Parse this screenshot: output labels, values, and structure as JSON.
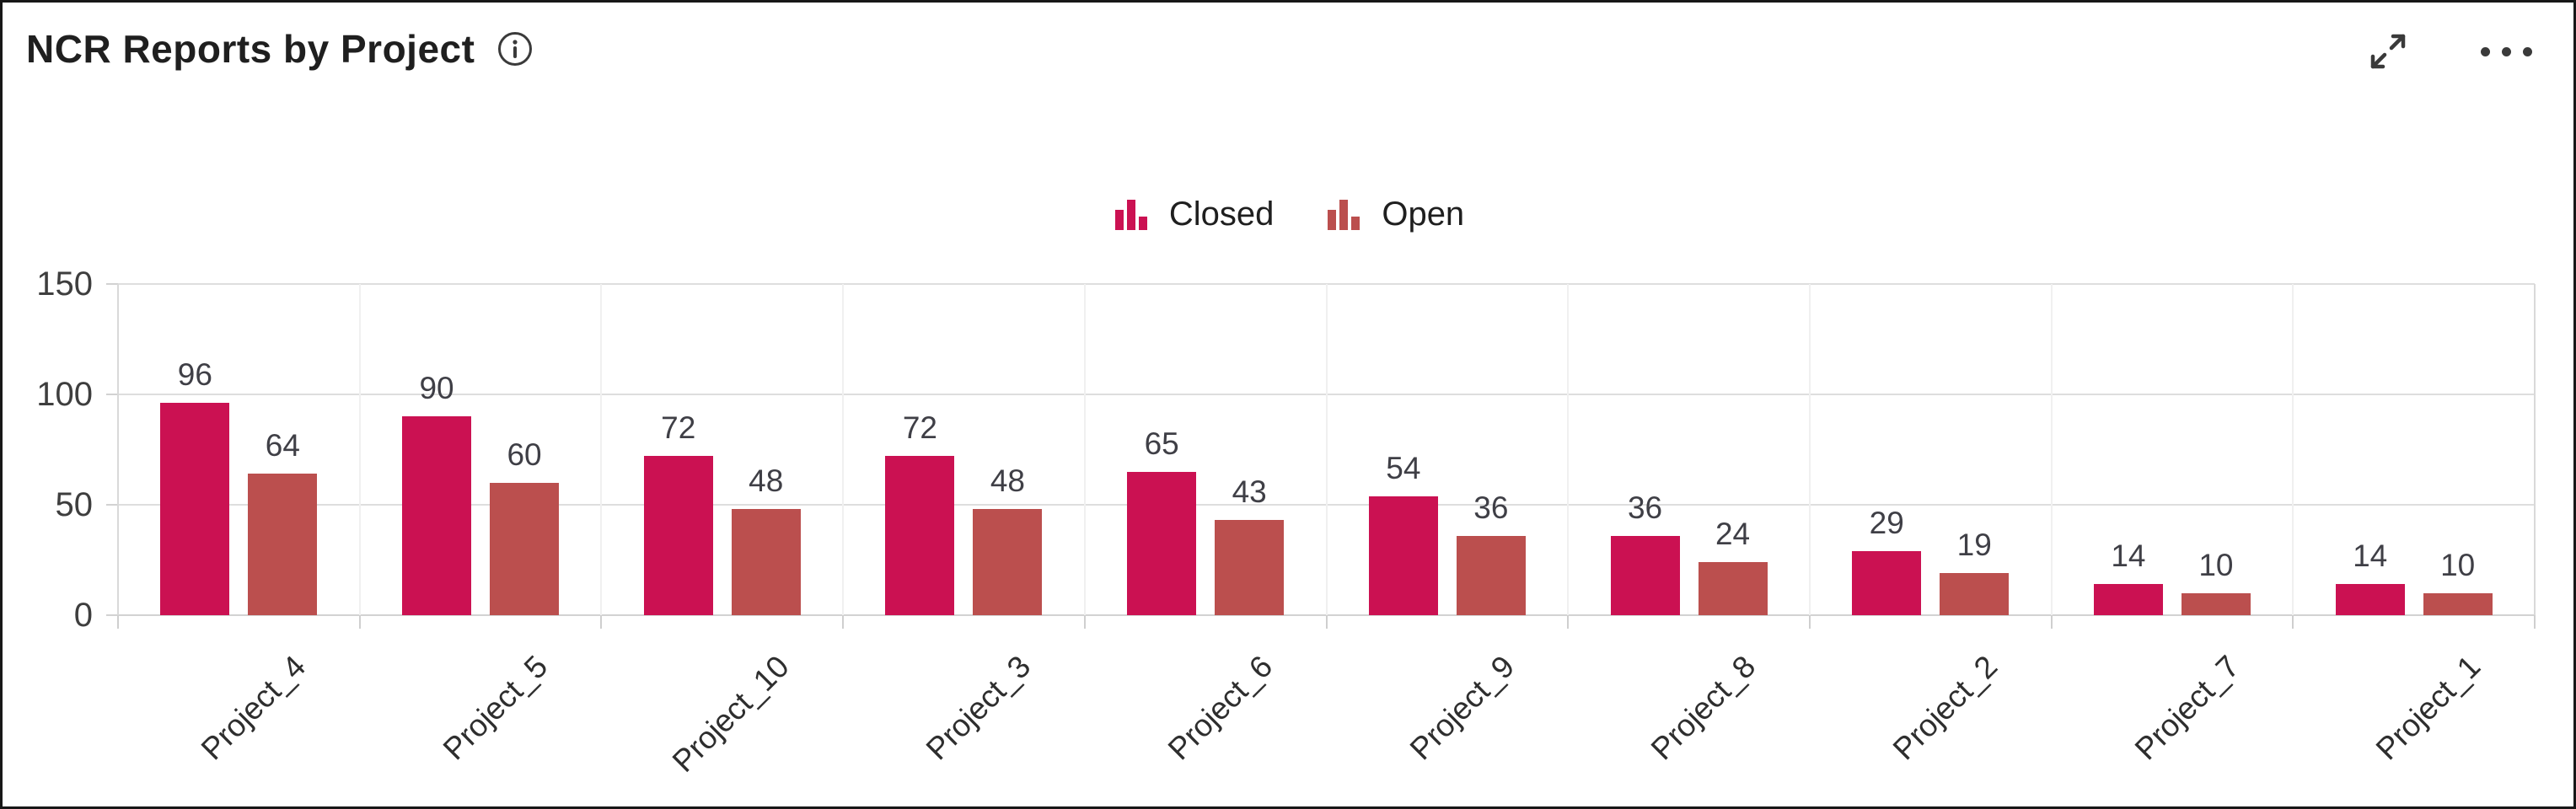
{
  "header": {
    "title": "NCR Reports by Project",
    "info_icon": "info-circle-icon",
    "expand_icon": "expand-diagonal-icon",
    "more_icon": "ellipsis-horizontal-icon"
  },
  "legend": {
    "items": [
      {
        "label": "Closed",
        "color": "#CB1152",
        "icon": "column-chart-icon"
      },
      {
        "label": "Open",
        "color": "#BB4F4E",
        "icon": "column-chart-icon"
      }
    ]
  },
  "chart_data": {
    "type": "bar",
    "title": "NCR Reports by Project",
    "categories": [
      "Project_4",
      "Project_5",
      "Project_10",
      "Project_3",
      "Project_6",
      "Project_9",
      "Project_8",
      "Project_2",
      "Project_7",
      "Project_1"
    ],
    "series": [
      {
        "name": "Closed",
        "color": "#CB1152",
        "values": [
          96,
          90,
          72,
          72,
          65,
          54,
          36,
          29,
          14,
          14
        ]
      },
      {
        "name": "Open",
        "color": "#BB4F4E",
        "values": [
          64,
          60,
          48,
          48,
          43,
          36,
          24,
          19,
          10,
          10
        ]
      }
    ],
    "xlabel": "",
    "ylabel": "",
    "yticks": [
      0,
      50,
      100,
      150
    ],
    "ylim": [
      0,
      150
    ],
    "grid": true,
    "value_labels": true,
    "xtick_rotation": -45,
    "legend_position": "top-center"
  },
  "colors": {
    "bar_closed": "#CB1152",
    "bar_open": "#BB4F4E",
    "gridline": "#DEDEDE",
    "axis_text": "#3E3E3E",
    "title_text": "#1F1F1F",
    "icon": "#3A3A3A",
    "border": "#171717"
  }
}
